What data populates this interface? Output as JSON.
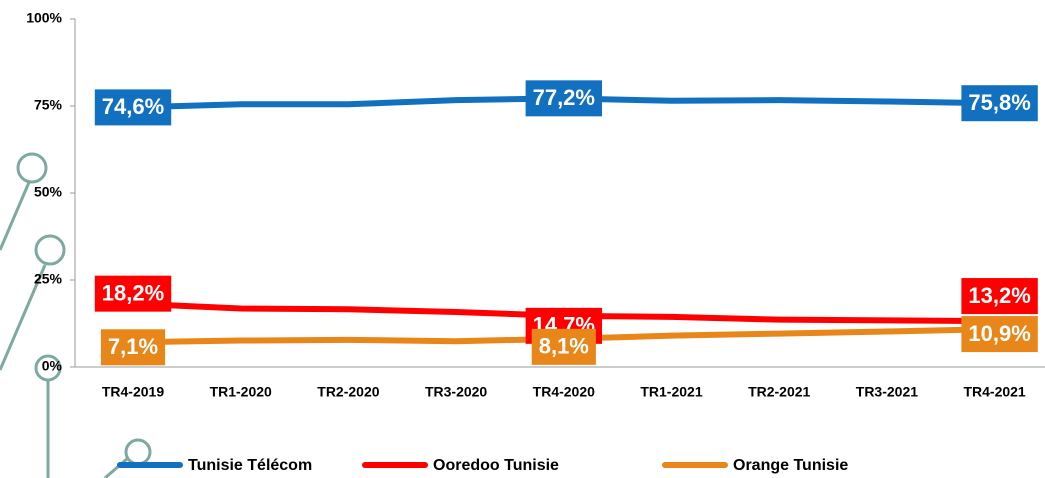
{
  "chart_data": {
    "type": "line",
    "categories": [
      "TR4-2019",
      "TR1-2020",
      "TR2-2020",
      "TR3-2020",
      "TR4-2020",
      "TR1-2021",
      "TR2-2021",
      "TR3-2021",
      "TR4-2021"
    ],
    "series": [
      {
        "name": "Tunisie Télécom",
        "color": "#1170c0",
        "values": [
          74.6,
          75.5,
          75.5,
          76.7,
          77.2,
          76.5,
          76.7,
          76.3,
          75.8
        ],
        "value_labels": [
          "74,6%",
          null,
          null,
          null,
          "77,2%",
          null,
          null,
          null,
          "75,8%"
        ]
      },
      {
        "name": "Ooredoo Tunisie",
        "color": "#ff0000",
        "values": [
          18.2,
          16.8,
          16.6,
          15.8,
          14.7,
          14.4,
          13.6,
          13.4,
          13.2
        ],
        "value_labels": [
          "18,2%",
          null,
          null,
          null,
          "14,7%",
          null,
          null,
          null,
          "13,2%"
        ]
      },
      {
        "name": "Orange Tunisie",
        "color": "#e8861a",
        "values": [
          7.1,
          7.6,
          7.8,
          7.4,
          8.1,
          9.0,
          9.6,
          10.2,
          10.9
        ],
        "value_labels": [
          "7,1%",
          null,
          null,
          null,
          "8,1%",
          null,
          null,
          null,
          "10,9%"
        ]
      }
    ],
    "ylim": [
      0,
      100
    ],
    "yticks": [
      {
        "value": 0,
        "label": "0%"
      },
      {
        "value": 25,
        "label": "25%"
      },
      {
        "value": 50,
        "label": "50%"
      },
      {
        "value": 75,
        "label": "75%"
      },
      {
        "value": 100,
        "label": "100%"
      }
    ],
    "legend": "bottom"
  }
}
